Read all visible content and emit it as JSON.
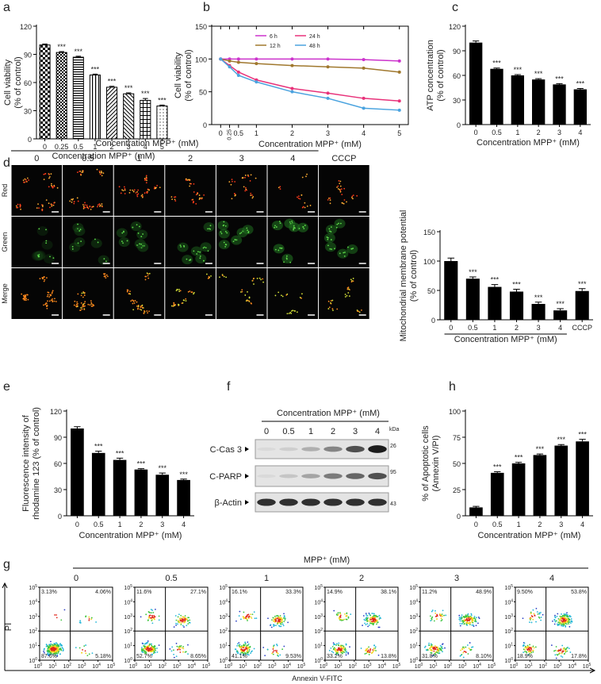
{
  "chart_data": [
    {
      "type": "bar",
      "label": "a",
      "ylabel": [
        "Cell viability",
        "(% of control)"
      ],
      "xlabel": "Concentration MPP⁺ (mM)",
      "categories": [
        "0",
        "0.25",
        "0.5",
        "1",
        "2",
        "3",
        "4",
        "5"
      ],
      "values": [
        100,
        92,
        87,
        68,
        55,
        48,
        41,
        35
      ],
      "errors": [
        1,
        1,
        1,
        1,
        1,
        1,
        2,
        1
      ],
      "annotations": [
        null,
        "***",
        "***",
        "***",
        "***",
        "***",
        "***",
        "***"
      ],
      "color": "#000000",
      "ylim": [
        0,
        120
      ],
      "yticks": [
        0,
        30,
        60,
        90,
        120
      ]
    },
    {
      "type": "line",
      "label": "b",
      "ylabel": [
        "Cell viability",
        "(% of control)"
      ],
      "xlabel": "Concentration MPP⁺ (mM)",
      "x": [
        0,
        0.25,
        0.5,
        1,
        2,
        3,
        4,
        5
      ],
      "series": [
        {
          "name": "6 h",
          "color": "#cc33cc",
          "values": [
            100,
            100,
            100,
            100,
            100,
            100,
            99,
            97
          ]
        },
        {
          "name": "12 h",
          "color": "#a0782e",
          "values": [
            100,
            97,
            95,
            93,
            90,
            88,
            86,
            80
          ]
        },
        {
          "name": "24 h",
          "color": "#e8327a",
          "values": [
            100,
            90,
            80,
            68,
            55,
            48,
            40,
            36
          ]
        },
        {
          "name": "48 h",
          "color": "#4aa3df",
          "values": [
            100,
            88,
            75,
            65,
            50,
            40,
            25,
            22
          ]
        }
      ],
      "xlim": [
        -0.25,
        5.25
      ],
      "xticks": [
        0,
        0.25,
        0.5,
        1,
        2,
        3,
        4,
        5
      ],
      "ylim": [
        0,
        150
      ],
      "yticks": [
        0,
        50,
        100,
        150
      ],
      "legend": "top"
    },
    {
      "type": "bar",
      "label": "c",
      "ylabel": [
        "ATP concentration",
        "(% of control)"
      ],
      "xlabel": "Concentration MPP⁺ (mM)",
      "categories": [
        "0",
        "0.5",
        "1",
        "2",
        "3",
        "4"
      ],
      "values": [
        100,
        68,
        60,
        55,
        49,
        43
      ],
      "errors": [
        2,
        1,
        1,
        1,
        1,
        1
      ],
      "annotations": [
        null,
        "***",
        "***",
        "***",
        "***",
        "***"
      ],
      "color": "#000000",
      "ylim": [
        0,
        120
      ],
      "yticks": [
        0,
        30,
        60,
        90,
        120
      ]
    },
    {
      "type": "bar",
      "ylabel": [
        "Mitochondrial membrane potential",
        "(% of control)"
      ],
      "xlabel": "Concentration MPP⁺ (mM)",
      "categories": [
        "0",
        "0.5",
        "1",
        "2",
        "3",
        "4",
        "CCCP"
      ],
      "values": [
        100,
        70,
        56,
        48,
        27,
        16,
        49
      ],
      "errors": [
        5,
        3,
        4,
        4,
        3,
        3,
        4
      ],
      "annotations": [
        null,
        "***",
        "***",
        "***",
        "***",
        "***",
        "***"
      ],
      "color": "#000000",
      "ylim": [
        0,
        150
      ],
      "yticks": [
        0,
        50,
        100,
        150
      ]
    },
    {
      "type": "bar",
      "label": "e",
      "ylabel": [
        "Fluorescence intensity of",
        "rhodamine 123 (% of control)"
      ],
      "xlabel": "Concentration MPP⁺ (mM)",
      "categories": [
        "0",
        "0.5",
        "1",
        "2",
        "3",
        "4"
      ],
      "values": [
        100,
        72,
        64,
        53,
        47,
        41
      ],
      "errors": [
        2,
        2,
        2,
        1,
        2,
        1
      ],
      "annotations": [
        null,
        "***",
        "***",
        "***",
        "***",
        "***"
      ],
      "color": "#000000",
      "ylim": [
        0,
        120
      ],
      "yticks": [
        0,
        30,
        60,
        90,
        120
      ]
    },
    {
      "type": "bar",
      "label": "h",
      "ylabel": [
        "% of Apoptotic cells",
        "(Annexin V/PI)"
      ],
      "xlabel": "Concentration MPP⁺ (mM)",
      "categories": [
        "0",
        "0.5",
        "1",
        "2",
        "3",
        "4"
      ],
      "values": [
        8,
        41,
        50,
        58,
        67,
        71
      ],
      "errors": [
        1,
        1,
        1,
        1,
        1,
        2
      ],
      "annotations": [
        null,
        "***",
        "***",
        "***",
        "***",
        "***"
      ],
      "color": "#000000",
      "ylim": [
        0,
        100
      ],
      "yticks": [
        0,
        25,
        50,
        75,
        100
      ]
    }
  ],
  "microscopy": {
    "label": "d",
    "header": "Concentration MPP⁺ (mM)",
    "columns": [
      "0",
      "0.5",
      "1",
      "2",
      "3",
      "4",
      "CCCP"
    ],
    "rows": [
      "Red",
      "Green",
      "Merge"
    ]
  },
  "western_blot": {
    "label": "f",
    "header": "Concentration MPP⁺ (mM)",
    "lanes": [
      "0",
      "0.5",
      "1",
      "2",
      "3",
      "4"
    ],
    "unit": "kDa",
    "rows": [
      {
        "name": "C-Cas 3",
        "kda": "26"
      },
      {
        "name": "C-PARP",
        "kda": "95"
      },
      {
        "name": "β-Actin",
        "kda": "43"
      }
    ]
  },
  "flow": {
    "label": "g",
    "header": "MPP⁺ (mM)",
    "xlabel": "Annexin V-FITC",
    "ylabel": "PI",
    "tick_base": "10",
    "tick_exponents": [
      0,
      1,
      2,
      3,
      4,
      5
    ],
    "plots": [
      {
        "title": "0",
        "quadrants": [
          "3.13%",
          "4.06%",
          "87.6%",
          "5.18%"
        ]
      },
      {
        "title": "0.5",
        "quadrants": [
          "11.6%",
          "27.1%",
          "52.7%",
          "8.65%"
        ]
      },
      {
        "title": "1",
        "quadrants": [
          "16.1%",
          "33.3%",
          "41.1%",
          "9.53%"
        ]
      },
      {
        "title": "2",
        "quadrants": [
          "14.9%",
          "38.1%",
          "33.2%",
          "13.8%"
        ]
      },
      {
        "title": "3",
        "quadrants": [
          "11.2%",
          "48.9%",
          "31.8%",
          "8.10%"
        ]
      },
      {
        "title": "4",
        "quadrants": [
          "9.50%",
          "53.8%",
          "18.9%",
          "17.8%"
        ]
      }
    ]
  }
}
